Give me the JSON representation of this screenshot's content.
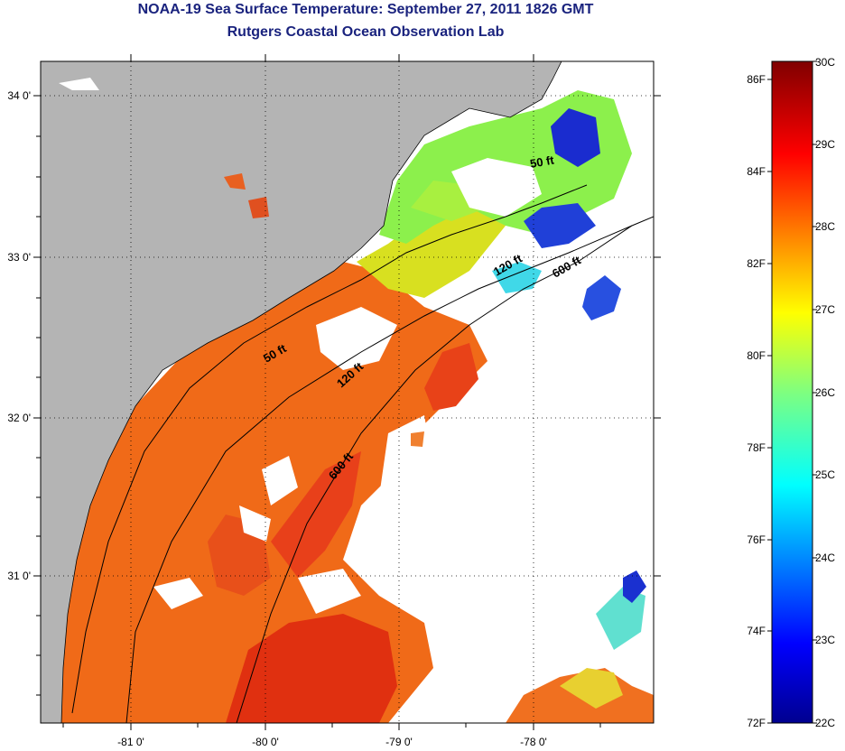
{
  "header": {
    "title": "NOAA-19 Sea Surface Temperature:  September 27, 2011 1826 GMT",
    "subtitle": "Rutgers Coastal Ocean Observation Lab"
  },
  "map": {
    "lon_ticks": [
      "-81 0'",
      "-80 0'",
      "-79 0'",
      "-78 0'"
    ],
    "lat_ticks": [
      "34 0'",
      "33 0'",
      "32 0'",
      "31 0'"
    ],
    "contours": [
      "50 ft",
      "120 ft",
      "600 ft"
    ],
    "colors": {
      "land": "#b4b4b4",
      "no_data": "#ffffff"
    }
  },
  "colorbar": {
    "fahrenheit_labels": [
      "86F",
      "84F",
      "82F",
      "80F",
      "78F",
      "76F",
      "74F",
      "72F"
    ],
    "celsius_labels": [
      "30C",
      "29C",
      "28C",
      "27C",
      "26C",
      "25C",
      "24C",
      "23C",
      "22C"
    ],
    "range_c": [
      22,
      30
    ],
    "colormap": "jet"
  }
}
